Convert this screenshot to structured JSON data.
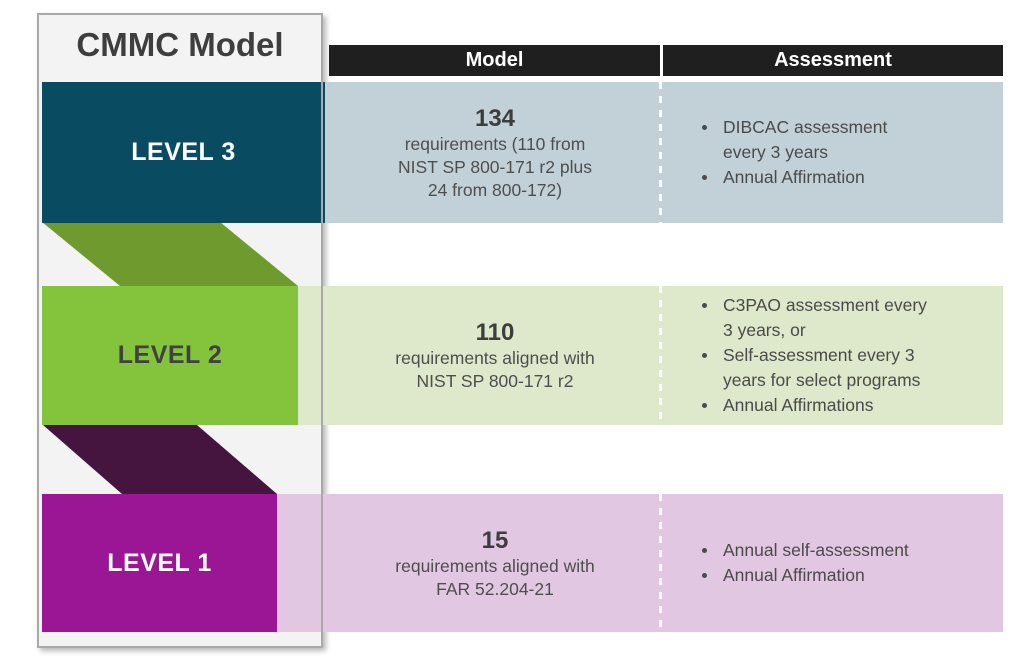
{
  "title": "CMMC Model",
  "table": {
    "headers": {
      "model": "Model",
      "assessment": "Assessment"
    }
  },
  "levels": [
    {
      "label": "LEVEL 3",
      "model": {
        "number": "134",
        "description": "requirements (110 from\nNIST SP 800-171 r2 plus\n24 from 800-172)"
      },
      "assessment": [
        "DIBCAC assessment\nevery 3 years",
        "Annual Affirmation"
      ],
      "box_color": "#094b60",
      "row_color": "#c2d1d8",
      "label_color": "#ffffff"
    },
    {
      "label": "LEVEL 2",
      "model": {
        "number": "110",
        "description": "requirements aligned with\nNIST SP 800-171 r2"
      },
      "assessment": [
        "C3PAO assessment every\n3 years, or",
        "Self-assessment every 3\nyears for select programs",
        "Annual Affirmations"
      ],
      "box_color": "#84c33c",
      "row_color": "#dde9ca",
      "label_color": "#414042"
    },
    {
      "label": "LEVEL 1",
      "model": {
        "number": "15",
        "description": "requirements aligned with\nFAR 52.204-21"
      },
      "assessment": [
        "Annual self-assessment",
        "Annual Affirmation"
      ],
      "box_color": "#9a1694",
      "row_color": "#e2c7e2",
      "label_color": "#ffffff"
    }
  ],
  "colors": {
    "ribbon_green": "#6f9b2e",
    "ribbon_purple": "#451540",
    "header_bg": "#1f1f1f",
    "panel_bg": "#f3f3f3",
    "panel_border": "#a9a9a9",
    "title_text": "#3e3e3e",
    "body_text": "#4e4e4e"
  }
}
